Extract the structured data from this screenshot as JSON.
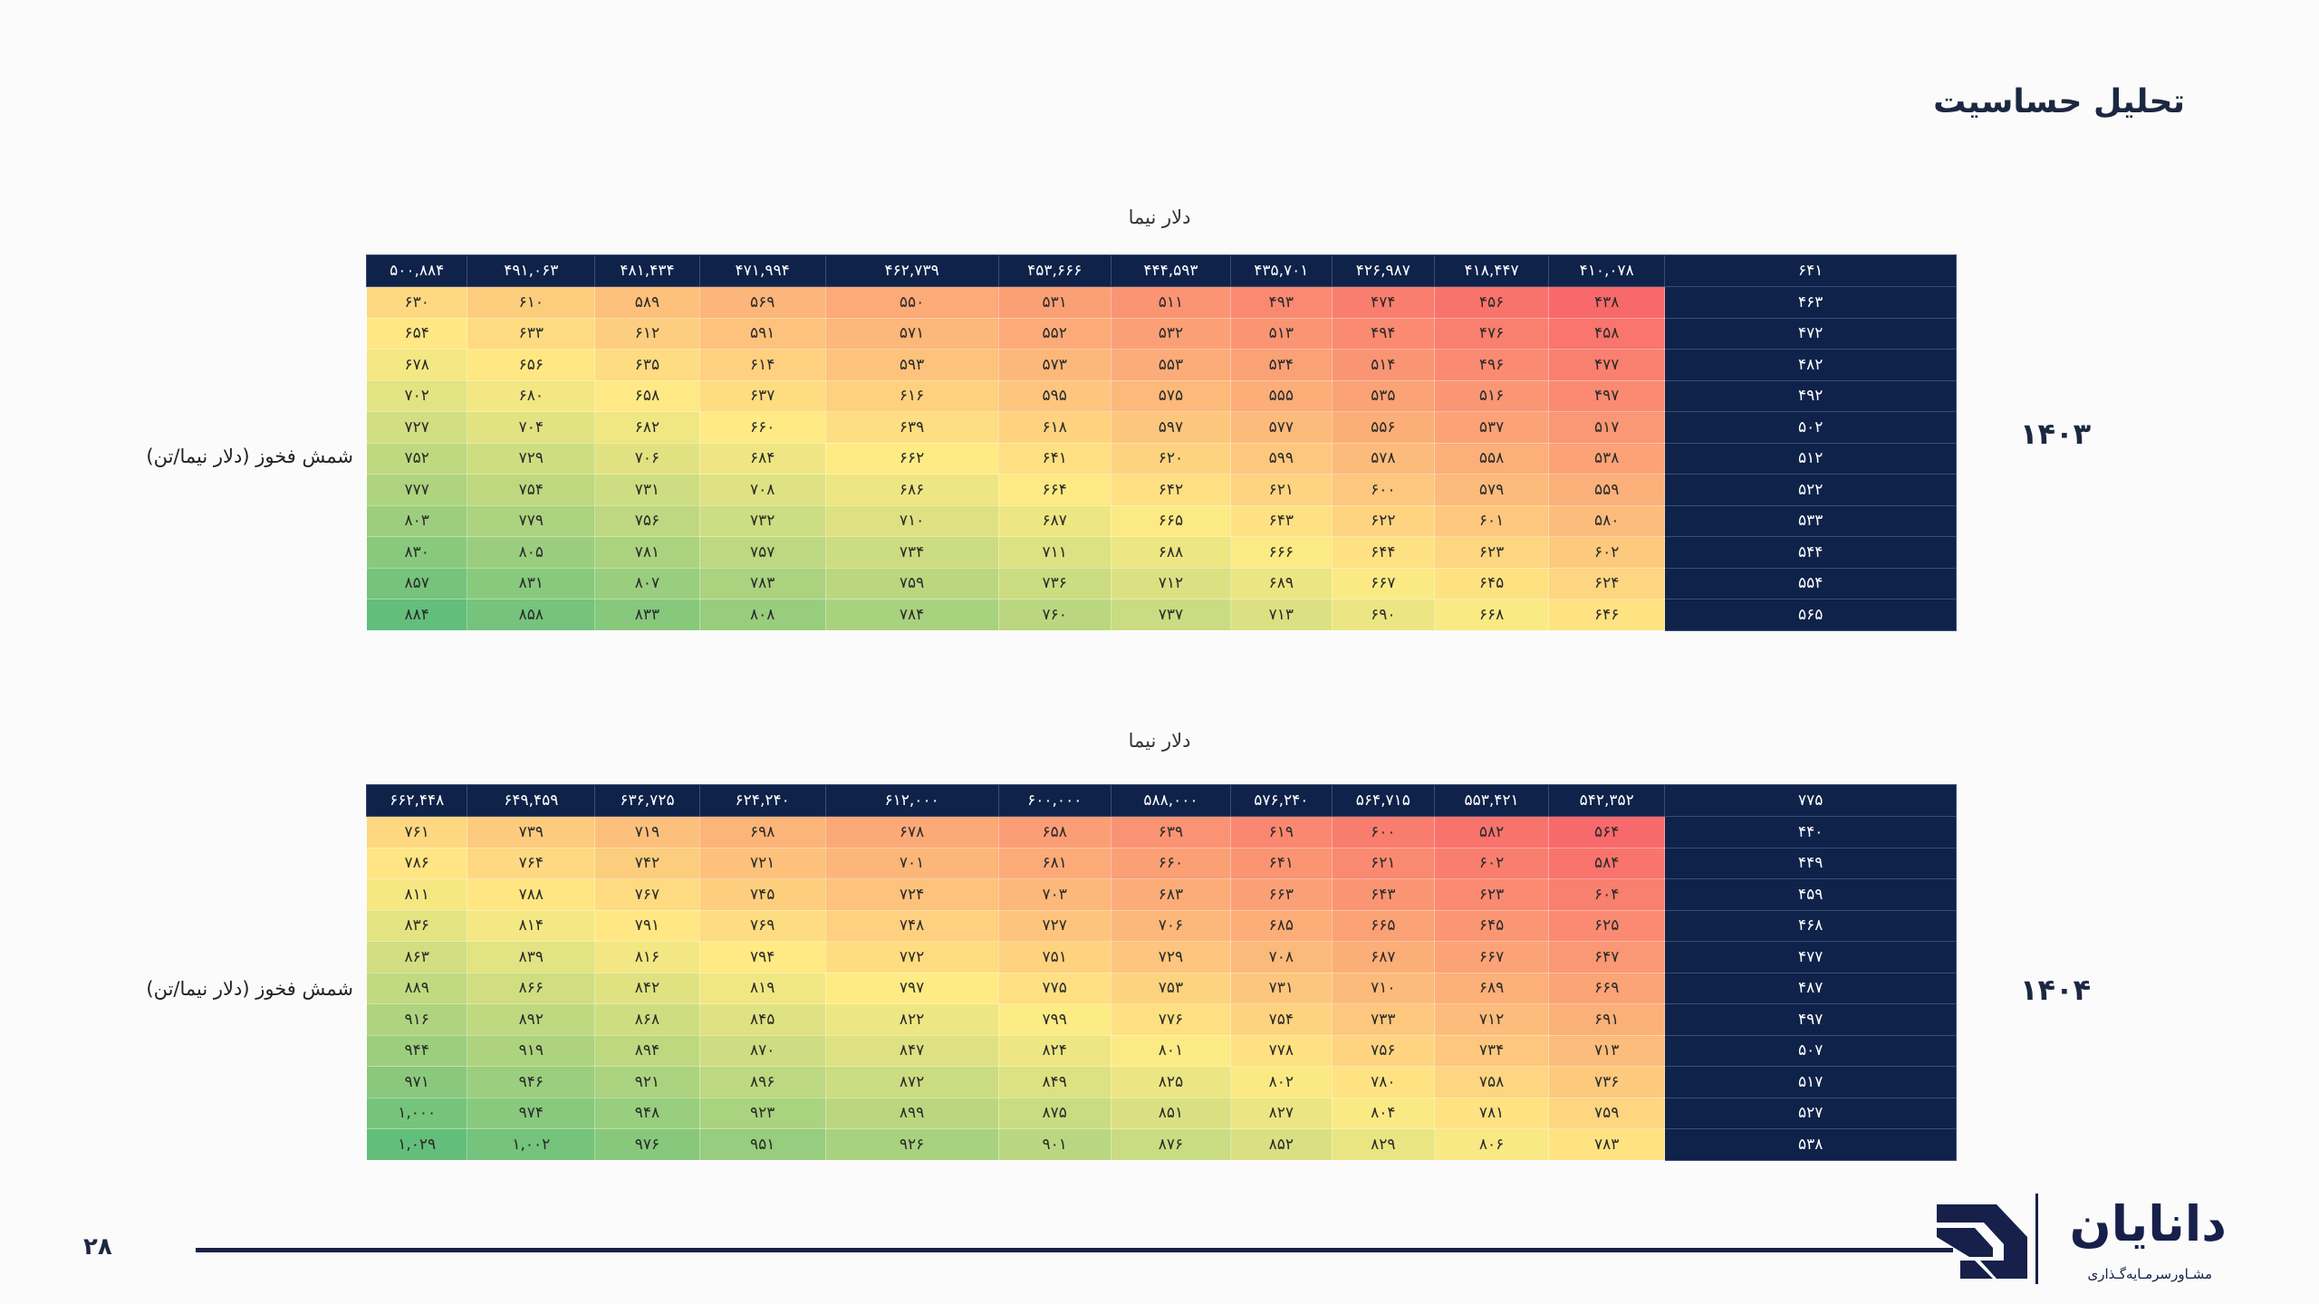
{
  "page": {
    "title": "تحلیل حساسیت",
    "page_number": "۲۸",
    "logo": {
      "name": "دانایان",
      "tagline": "مشـاورسرمـایه‌گـذاری"
    }
  },
  "colors": {
    "header_bg": "#0f2249",
    "scale_low": "#f8696b",
    "scale_mid": "#ffeb84",
    "scale_high": "#63be7b"
  },
  "chart_data": [
    {
      "type": "heatmap",
      "year": "۱۴۰۳",
      "xlabel": "دلار نیما",
      "ylabel": "شمش فخوز (دلار نیما/تن)",
      "corner": "۶۴۱",
      "columns": [
        "۵۰۰,۸۸۴",
        "۴۹۱,۰۶۳",
        "۴۸۱,۴۳۴",
        "۴۷۱,۹۹۴",
        "۴۶۲,۷۳۹",
        "۴۵۳,۶۶۶",
        "۴۴۴,۵۹۳",
        "۴۳۵,۷۰۱",
        "۴۲۶,۹۸۷",
        "۴۱۸,۴۴۷",
        "۴۱۰,۰۷۸"
      ],
      "rows": [
        {
          "label": "۴۶۳",
          "values": [
            "۶۳۰",
            "۶۱۰",
            "۵۸۹",
            "۵۶۹",
            "۵۵۰",
            "۵۳۱",
            "۵۱۱",
            "۴۹۳",
            "۴۷۴",
            "۴۵۶",
            "۴۳۸"
          ]
        },
        {
          "label": "۴۷۲",
          "values": [
            "۶۵۴",
            "۶۳۳",
            "۶۱۲",
            "۵۹۱",
            "۵۷۱",
            "۵۵۲",
            "۵۳۲",
            "۵۱۳",
            "۴۹۴",
            "۴۷۶",
            "۴۵۸"
          ]
        },
        {
          "label": "۴۸۲",
          "values": [
            "۶۷۸",
            "۶۵۶",
            "۶۳۵",
            "۶۱۴",
            "۵۹۳",
            "۵۷۳",
            "۵۵۳",
            "۵۳۴",
            "۵۱۴",
            "۴۹۶",
            "۴۷۷"
          ]
        },
        {
          "label": "۴۹۲",
          "values": [
            "۷۰۲",
            "۶۸۰",
            "۶۵۸",
            "۶۳۷",
            "۶۱۶",
            "۵۹۵",
            "۵۷۵",
            "۵۵۵",
            "۵۳۵",
            "۵۱۶",
            "۴۹۷"
          ]
        },
        {
          "label": "۵۰۲",
          "values": [
            "۷۲۷",
            "۷۰۴",
            "۶۸۲",
            "۶۶۰",
            "۶۳۹",
            "۶۱۸",
            "۵۹۷",
            "۵۷۷",
            "۵۵۶",
            "۵۳۷",
            "۵۱۷"
          ]
        },
        {
          "label": "۵۱۲",
          "values": [
            "۷۵۲",
            "۷۲۹",
            "۷۰۶",
            "۶۸۴",
            "۶۶۲",
            "۶۴۱",
            "۶۲۰",
            "۵۹۹",
            "۵۷۸",
            "۵۵۸",
            "۵۳۸"
          ]
        },
        {
          "label": "۵۲۲",
          "values": [
            "۷۷۷",
            "۷۵۴",
            "۷۳۱",
            "۷۰۸",
            "۶۸۶",
            "۶۶۴",
            "۶۴۲",
            "۶۲۱",
            "۶۰۰",
            "۵۷۹",
            "۵۵۹"
          ]
        },
        {
          "label": "۵۳۳",
          "values": [
            "۸۰۳",
            "۷۷۹",
            "۷۵۶",
            "۷۳۲",
            "۷۱۰",
            "۶۸۷",
            "۶۶۵",
            "۶۴۳",
            "۶۲۲",
            "۶۰۱",
            "۵۸۰"
          ]
        },
        {
          "label": "۵۴۴",
          "values": [
            "۸۳۰",
            "۸۰۵",
            "۷۸۱",
            "۷۵۷",
            "۷۳۴",
            "۷۱۱",
            "۶۸۸",
            "۶۶۶",
            "۶۴۴",
            "۶۲۳",
            "۶۰۲"
          ]
        },
        {
          "label": "۵۵۴",
          "values": [
            "۸۵۷",
            "۸۳۱",
            "۸۰۷",
            "۷۸۳",
            "۷۵۹",
            "۷۳۶",
            "۷۱۲",
            "۶۸۹",
            "۶۶۷",
            "۶۴۵",
            "۶۲۴"
          ]
        },
        {
          "label": "۵۶۵",
          "values": [
            "۸۸۴",
            "۸۵۸",
            "۸۳۳",
            "۸۰۸",
            "۷۸۴",
            "۷۶۰",
            "۷۳۷",
            "۷۱۳",
            "۶۹۰",
            "۶۶۸",
            "۶۴۶"
          ]
        }
      ]
    },
    {
      "type": "heatmap",
      "year": "۱۴۰۴",
      "xlabel": "دلار نیما",
      "ylabel": "شمش فخوز (دلار نیما/تن)",
      "corner": "۷۷۵",
      "columns": [
        "۶۶۲,۴۴۸",
        "۶۴۹,۴۵۹",
        "۶۳۶,۷۲۵",
        "۶۲۴,۲۴۰",
        "۶۱۲,۰۰۰",
        "۶۰۰,۰۰۰",
        "۵۸۸,۰۰۰",
        "۵۷۶,۲۴۰",
        "۵۶۴,۷۱۵",
        "۵۵۳,۴۲۱",
        "۵۴۲,۳۵۲"
      ],
      "rows": [
        {
          "label": "۴۴۰",
          "values": [
            "۷۶۱",
            "۷۳۹",
            "۷۱۹",
            "۶۹۸",
            "۶۷۸",
            "۶۵۸",
            "۶۳۹",
            "۶۱۹",
            "۶۰۰",
            "۵۸۲",
            "۵۶۴"
          ]
        },
        {
          "label": "۴۴۹",
          "values": [
            "۷۸۶",
            "۷۶۴",
            "۷۴۲",
            "۷۲۱",
            "۷۰۱",
            "۶۸۱",
            "۶۶۰",
            "۶۴۱",
            "۶۲۱",
            "۶۰۲",
            "۵۸۴"
          ]
        },
        {
          "label": "۴۵۹",
          "values": [
            "۸۱۱",
            "۷۸۸",
            "۷۶۷",
            "۷۴۵",
            "۷۲۴",
            "۷۰۳",
            "۶۸۳",
            "۶۶۳",
            "۶۴۳",
            "۶۲۳",
            "۶۰۴"
          ]
        },
        {
          "label": "۴۶۸",
          "values": [
            "۸۳۶",
            "۸۱۴",
            "۷۹۱",
            "۷۶۹",
            "۷۴۸",
            "۷۲۷",
            "۷۰۶",
            "۶۸۵",
            "۶۶۵",
            "۶۴۵",
            "۶۲۵"
          ]
        },
        {
          "label": "۴۷۷",
          "values": [
            "۸۶۳",
            "۸۳۹",
            "۸۱۶",
            "۷۹۴",
            "۷۷۲",
            "۷۵۱",
            "۷۲۹",
            "۷۰۸",
            "۶۸۷",
            "۶۶۷",
            "۶۴۷"
          ]
        },
        {
          "label": "۴۸۷",
          "values": [
            "۸۸۹",
            "۸۶۶",
            "۸۴۲",
            "۸۱۹",
            "۷۹۷",
            "۷۷۵",
            "۷۵۳",
            "۷۳۱",
            "۷۱۰",
            "۶۸۹",
            "۶۶۹"
          ]
        },
        {
          "label": "۴۹۷",
          "values": [
            "۹۱۶",
            "۸۹۲",
            "۸۶۸",
            "۸۴۵",
            "۸۲۲",
            "۷۹۹",
            "۷۷۶",
            "۷۵۴",
            "۷۳۳",
            "۷۱۲",
            "۶۹۱"
          ]
        },
        {
          "label": "۵۰۷",
          "values": [
            "۹۴۴",
            "۹۱۹",
            "۸۹۴",
            "۸۷۰",
            "۸۴۷",
            "۸۲۴",
            "۸۰۱",
            "۷۷۸",
            "۷۵۶",
            "۷۳۴",
            "۷۱۳"
          ]
        },
        {
          "label": "۵۱۷",
          "values": [
            "۹۷۱",
            "۹۴۶",
            "۹۲۱",
            "۸۹۶",
            "۸۷۲",
            "۸۴۹",
            "۸۲۵",
            "۸۰۲",
            "۷۸۰",
            "۷۵۸",
            "۷۳۶"
          ]
        },
        {
          "label": "۵۲۷",
          "values": [
            "۱,۰۰۰",
            "۹۷۴",
            "۹۴۸",
            "۹۲۳",
            "۸۹۹",
            "۸۷۵",
            "۸۵۱",
            "۸۲۷",
            "۸۰۴",
            "۷۸۱",
            "۷۵۹"
          ]
        },
        {
          "label": "۵۳۸",
          "values": [
            "۱,۰۲۹",
            "۱,۰۰۲",
            "۹۷۶",
            "۹۵۱",
            "۹۲۶",
            "۹۰۱",
            "۸۷۶",
            "۸۵۲",
            "۸۲۹",
            "۸۰۶",
            "۷۸۳"
          ]
        }
      ]
    }
  ]
}
